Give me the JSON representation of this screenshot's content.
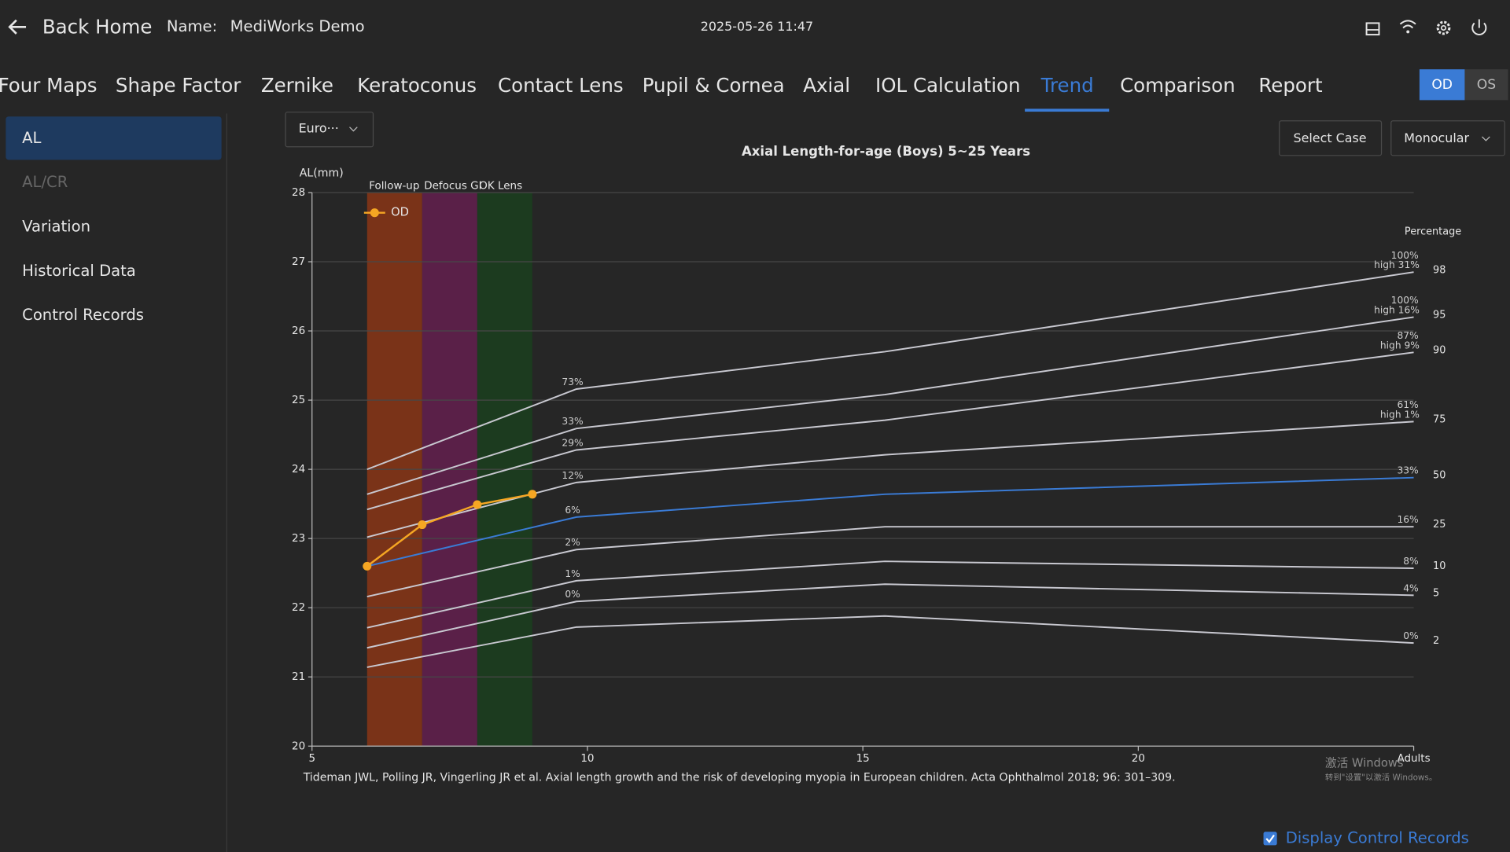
{
  "header": {
    "back": "Back Home",
    "name_label": "Name:",
    "name": "MediWorks Demo",
    "datetime": "2025-05-26 11:47"
  },
  "tabs": [
    {
      "label": "Four Maps"
    },
    {
      "label": "Shape Factor"
    },
    {
      "label": "Zernike"
    },
    {
      "label": "Keratoconus"
    },
    {
      "label": "Contact Lens"
    },
    {
      "label": "Pupil & Cornea"
    },
    {
      "label": "Axial"
    },
    {
      "label": "IOL Calculation"
    },
    {
      "label": "Trend",
      "active": true
    },
    {
      "label": "Comparison"
    },
    {
      "label": "Report"
    }
  ],
  "eye_toggle": [
    {
      "label": "OD",
      "active": true
    },
    {
      "label": "OS"
    }
  ],
  "sidebar": [
    {
      "label": "AL",
      "state": "active"
    },
    {
      "label": "AL/CR",
      "state": "disabled"
    },
    {
      "label": "Variation",
      "state": "normal"
    },
    {
      "label": "Historical Data",
      "state": "normal"
    },
    {
      "label": "Control Records",
      "state": "normal"
    }
  ],
  "controls": {
    "reference": "Euro···",
    "select_case": "Select Case",
    "mode": "Monocular",
    "display_control_records": "Display Control Records",
    "display_control_records_checked": true
  },
  "watermark": [
    "激活 Windows",
    "转到\"设置\"以激活 Windows。"
  ],
  "chart_data": {
    "type": "line",
    "title": "Axial Length-for-age (Boys) 5~25 Years",
    "ylabel": "AL(mm)",
    "percentile_label": "Percentage",
    "citation": "Tideman JWL, Polling JR, Vingerling JR et al. Axial length growth and the risk of developing myopia in European children. Acta Ophthalmol 2018; 96: 301–309.",
    "xlim": [
      5,
      25
    ],
    "xticks": [
      5,
      10,
      15,
      20,
      {
        "value": 25,
        "label": "Adults"
      }
    ],
    "ylim": [
      20,
      28
    ],
    "yticks": [
      20,
      21,
      22,
      23,
      24,
      25,
      26,
      27,
      28
    ],
    "grid": true,
    "legend": "top-left",
    "bands": [
      {
        "label": "Follow-up",
        "from": 6,
        "to": 7,
        "color": "#7a3318"
      },
      {
        "label": "Defocus GI",
        "from": 7,
        "to": 8,
        "color": "#5a2048"
      },
      {
        "label": "OK Lens",
        "from": 8,
        "to": 9,
        "color": "#1c3b1f"
      }
    ],
    "percentiles": [
      {
        "name": "98",
        "color": "#c8c8d0",
        "x": [
          6,
          9.8,
          15.4,
          25
        ],
        "values": [
          24.0,
          25.16,
          25.7,
          26.85
        ],
        "point_labels": [
          null,
          "73%",
          null,
          "100%"
        ],
        "end_note": "high 31%"
      },
      {
        "name": "95",
        "color": "#c8c8d0",
        "x": [
          6,
          9.8,
          15.4,
          25
        ],
        "values": [
          23.64,
          24.59,
          25.08,
          26.2
        ],
        "point_labels": [
          null,
          "33%",
          null,
          "100%"
        ],
        "end_note": "high 16%"
      },
      {
        "name": "90",
        "color": "#c8c8d0",
        "x": [
          6,
          9.8,
          15.4,
          25
        ],
        "values": [
          23.42,
          24.28,
          24.71,
          25.69
        ],
        "point_labels": [
          null,
          "29%",
          null,
          "87%"
        ],
        "end_note": "high 9%"
      },
      {
        "name": "75",
        "color": "#c8c8d0",
        "x": [
          6,
          9.8,
          15.4,
          25
        ],
        "values": [
          23.02,
          23.81,
          24.21,
          24.69
        ],
        "point_labels": [
          null,
          "12%",
          null,
          "61%"
        ],
        "end_note": "high 1%"
      },
      {
        "name": "50",
        "color": "#3a7bd5",
        "x": [
          6,
          9.8,
          15.4,
          25
        ],
        "values": [
          22.6,
          23.31,
          23.64,
          23.88
        ],
        "point_labels": [
          null,
          "6%",
          null,
          "33%"
        ]
      },
      {
        "name": "25",
        "color": "#c8c8d0",
        "x": [
          6,
          9.8,
          15.4,
          25
        ],
        "values": [
          22.16,
          22.84,
          23.17,
          23.17
        ],
        "point_labels": [
          null,
          "2%",
          null,
          "16%"
        ]
      },
      {
        "name": "10",
        "color": "#c8c8d0",
        "x": [
          6,
          9.8,
          15.4,
          25
        ],
        "values": [
          21.71,
          22.39,
          22.67,
          22.57
        ],
        "point_labels": [
          null,
          "1%",
          null,
          "8%"
        ]
      },
      {
        "name": "5",
        "color": "#c8c8d0",
        "x": [
          6,
          9.8,
          15.4,
          25
        ],
        "values": [
          21.42,
          22.09,
          22.34,
          22.18
        ],
        "point_labels": [
          null,
          "0%",
          null,
          "4%"
        ]
      },
      {
        "name": "2",
        "color": "#c8c8d0",
        "x": [
          6,
          9.8,
          15.4,
          25
        ],
        "values": [
          21.14,
          21.72,
          21.88,
          21.49
        ],
        "point_labels": [
          null,
          null,
          null,
          "0%"
        ]
      }
    ],
    "series": [
      {
        "name": "OD",
        "color": "#f5a623",
        "x": [
          6,
          7,
          8,
          9
        ],
        "values": [
          22.6,
          23.2,
          23.49,
          23.64
        ]
      }
    ]
  }
}
